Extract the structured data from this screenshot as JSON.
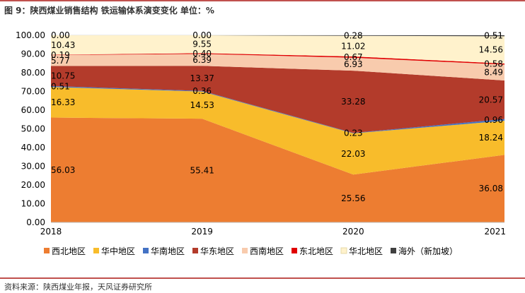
{
  "figure": {
    "title": "图 9：陕西煤业销售结构 铁运输体系演变变化 单位：%",
    "source": "资料来源：陕西煤业年报，天风证券研究所"
  },
  "chart_data": {
    "type": "area",
    "stacked": true,
    "title": "",
    "xlabel": "",
    "ylabel": "",
    "categories": [
      "2018",
      "2019",
      "2020",
      "2021"
    ],
    "ylim": [
      0,
      100
    ],
    "yticks": [
      "0.00",
      "10.00",
      "20.00",
      "30.00",
      "40.00",
      "50.00",
      "60.00",
      "70.00",
      "80.00",
      "90.00",
      "100.00"
    ],
    "legend_position": "bottom",
    "series": [
      {
        "name": "西北地区",
        "color": "#ed7d31",
        "values": [
          56.03,
          55.41,
          25.56,
          36.08
        ],
        "labels": [
          "56.03",
          "55.41",
          "25.56",
          "36.08"
        ]
      },
      {
        "name": "华中地区",
        "color": "#f8bc2b",
        "values": [
          16.33,
          14.53,
          22.03,
          18.24
        ],
        "labels": [
          "16.33",
          "14.53",
          "22.03",
          "18.24"
        ]
      },
      {
        "name": "华南地区",
        "color": "#4472c4",
        "values": [
          0.51,
          0.36,
          0.23,
          0.96
        ],
        "labels": [
          "0.51",
          "0.36",
          "0.23",
          "0.96"
        ]
      },
      {
        "name": "华东地区",
        "color": "#b33b2b",
        "values": [
          10.75,
          13.37,
          33.28,
          20.57
        ],
        "labels": [
          "10.75",
          "13.37",
          "33.28",
          "20.57"
        ]
      },
      {
        "name": "西南地区",
        "color": "#f8cbad",
        "values": [
          5.77,
          6.39,
          6.93,
          8.49
        ],
        "labels": [
          "5.77",
          "6.39",
          "6.93",
          "8.49"
        ]
      },
      {
        "name": "东北地区",
        "color": "#e00000",
        "values": [
          0.19,
          0.4,
          0.67,
          0.58
        ],
        "labels": [
          "0.19",
          "0.40",
          "0.67",
          "0.58"
        ]
      },
      {
        "name": "华北地区",
        "color": "#fff2cc",
        "values": [
          10.43,
          9.55,
          11.02,
          14.56
        ],
        "labels": [
          "10.43",
          "9.55",
          "11.02",
          "14.56"
        ]
      },
      {
        "name": "海外（新加坡）",
        "color": "#404040",
        "values": [
          0.0,
          0.0,
          0.28,
          0.51
        ],
        "labels": [
          "0.00",
          "0.00",
          "0.28",
          "0.51"
        ]
      }
    ]
  }
}
